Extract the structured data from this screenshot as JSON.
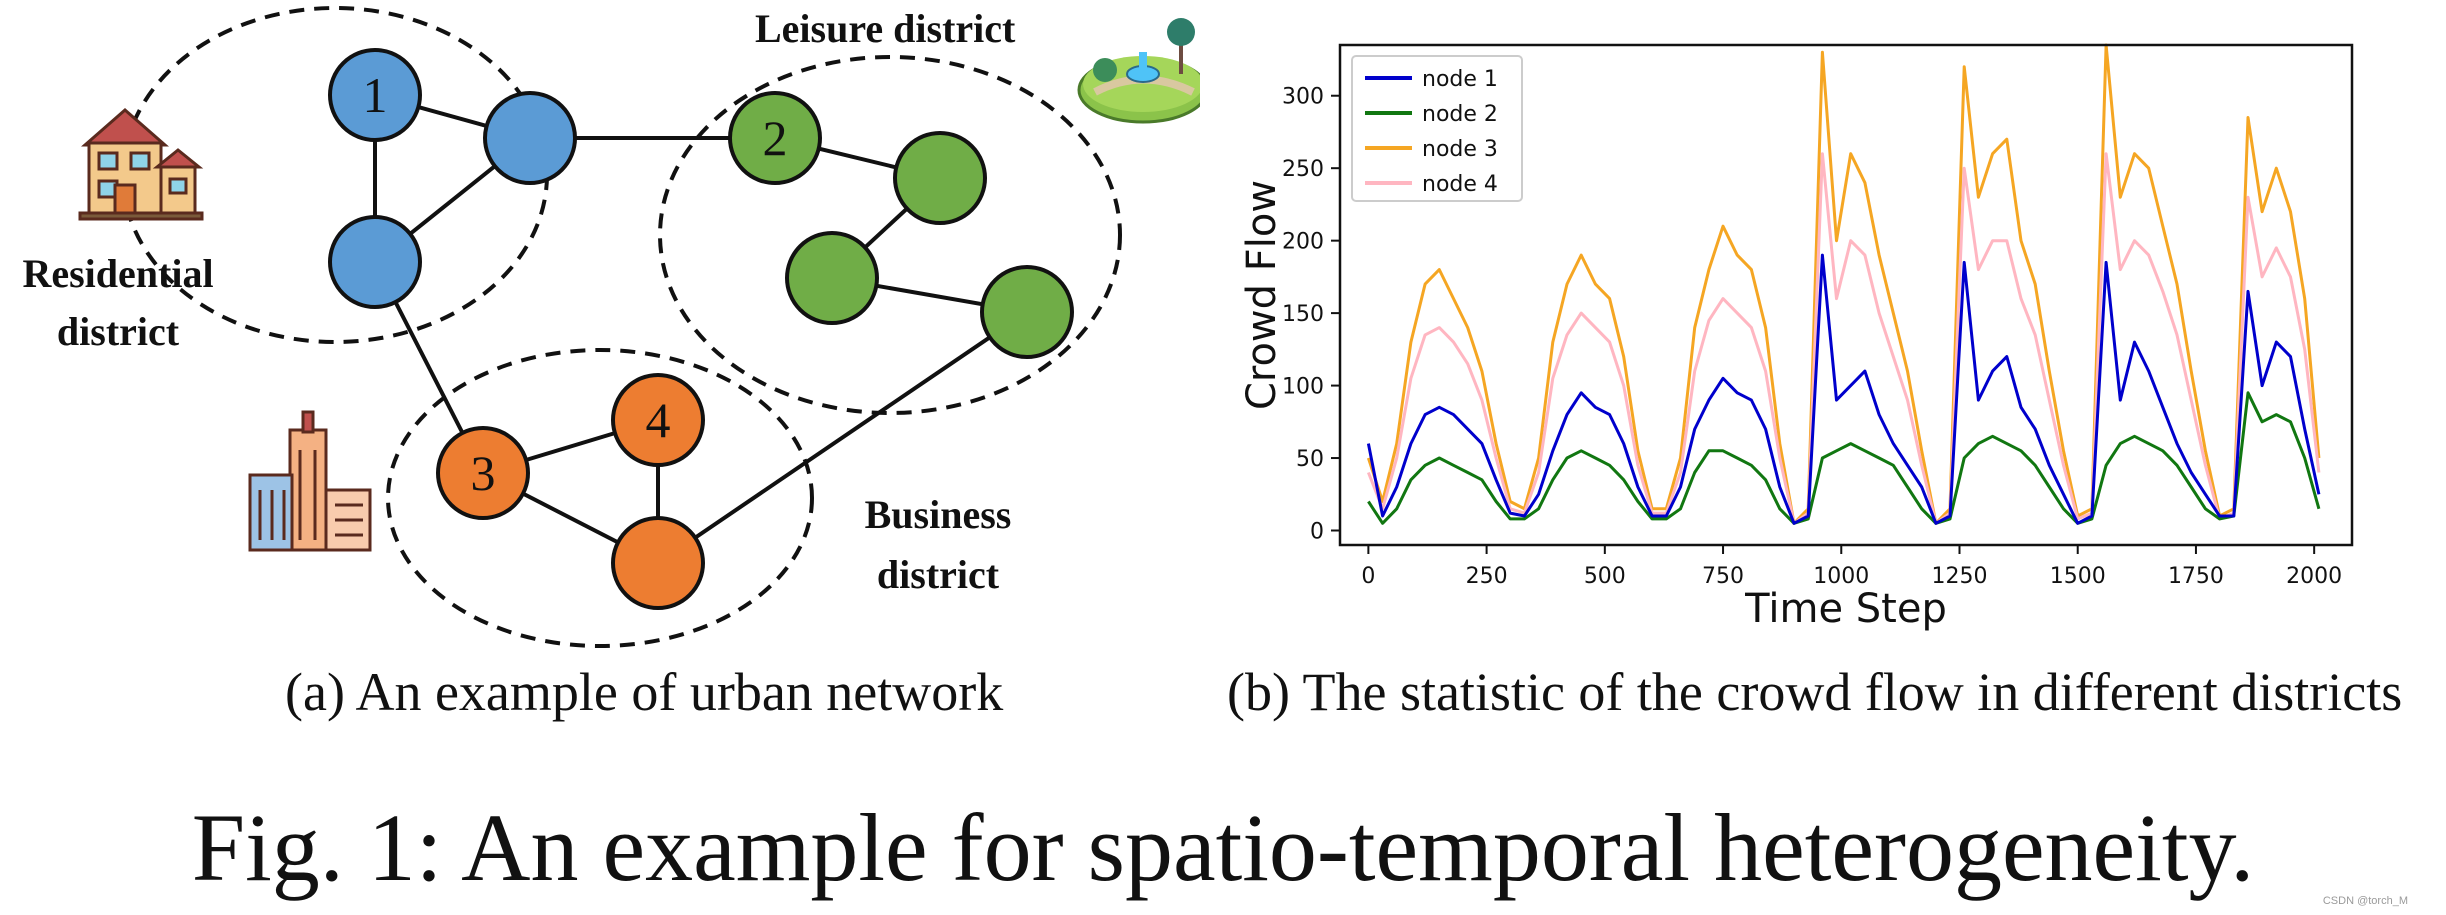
{
  "figure": {
    "caption": "Fig. 1: An example for spatio-temporal heterogeneity.",
    "watermark": "CSDN @torch_M"
  },
  "panel_a": {
    "caption": "(a) An example of urban network",
    "districts": {
      "residential": {
        "line1": "Residential",
        "line2": "district",
        "icon": "house-icon"
      },
      "leisure": {
        "line1": "Leisure district",
        "icon": "park-icon"
      },
      "business": {
        "line1": "Business",
        "line2": "district",
        "icon": "office-buildings-icon"
      }
    },
    "node_labels": [
      "1",
      "2",
      "3",
      "4"
    ],
    "colors": {
      "residential": "#5b9bd5",
      "leisure": "#70ad47",
      "business": "#ed7d31",
      "outline": "#111111"
    }
  },
  "panel_b": {
    "caption": "(b) The statistic of the crowd flow in different districts"
  },
  "chart_data": {
    "type": "line",
    "xlabel": "Time Step",
    "ylabel": "Crowd Flow",
    "xlim": [
      -60,
      2080
    ],
    "ylim": [
      -10,
      335
    ],
    "xticks": [
      0,
      250,
      500,
      750,
      1000,
      1250,
      1500,
      1750,
      2000
    ],
    "yticks": [
      0,
      50,
      100,
      150,
      200,
      250,
      300
    ],
    "grid": false,
    "legend_position": "top-left",
    "x": [
      0,
      30,
      60,
      90,
      120,
      150,
      180,
      210,
      240,
      270,
      300,
      330,
      360,
      390,
      420,
      450,
      480,
      510,
      540,
      570,
      600,
      630,
      660,
      690,
      720,
      750,
      780,
      810,
      840,
      870,
      900,
      930,
      960,
      990,
      1020,
      1050,
      1080,
      1110,
      1140,
      1170,
      1200,
      1230,
      1260,
      1290,
      1320,
      1350,
      1380,
      1410,
      1440,
      1470,
      1500,
      1530,
      1560,
      1590,
      1620,
      1650,
      1680,
      1710,
      1740,
      1770,
      1800,
      1830,
      1860,
      1890,
      1920,
      1950,
      1980,
      2010
    ],
    "series": [
      {
        "name": "node 1",
        "color": "#0000cc",
        "values": [
          60,
          10,
          30,
          60,
          80,
          85,
          80,
          70,
          60,
          35,
          12,
          10,
          25,
          55,
          80,
          95,
          85,
          80,
          60,
          30,
          10,
          10,
          30,
          70,
          90,
          105,
          95,
          90,
          70,
          30,
          5,
          10,
          190,
          90,
          100,
          110,
          80,
          60,
          45,
          30,
          5,
          10,
          185,
          90,
          110,
          120,
          85,
          70,
          45,
          25,
          5,
          10,
          185,
          90,
          130,
          110,
          85,
          60,
          40,
          25,
          10,
          10,
          165,
          100,
          130,
          120,
          70,
          25
        ]
      },
      {
        "name": "node 2",
        "color": "#117711",
        "values": [
          20,
          5,
          15,
          35,
          45,
          50,
          45,
          40,
          35,
          20,
          8,
          8,
          15,
          35,
          50,
          55,
          50,
          45,
          35,
          20,
          8,
          8,
          15,
          40,
          55,
          55,
          50,
          45,
          35,
          15,
          5,
          8,
          50,
          55,
          60,
          55,
          50,
          45,
          30,
          15,
          5,
          8,
          50,
          60,
          65,
          60,
          55,
          45,
          30,
          15,
          5,
          8,
          45,
          60,
          65,
          60,
          55,
          45,
          30,
          15,
          8,
          10,
          95,
          75,
          80,
          75,
          50,
          15
        ]
      },
      {
        "name": "node 3",
        "color": "#f5a623",
        "values": [
          50,
          20,
          60,
          130,
          170,
          180,
          160,
          140,
          110,
          60,
          20,
          15,
          50,
          130,
          170,
          190,
          170,
          160,
          120,
          55,
          15,
          15,
          50,
          140,
          180,
          210,
          190,
          180,
          140,
          60,
          5,
          15,
          330,
          200,
          260,
          240,
          190,
          150,
          110,
          55,
          5,
          15,
          320,
          230,
          260,
          270,
          200,
          170,
          110,
          55,
          10,
          15,
          335,
          230,
          260,
          250,
          210,
          170,
          110,
          55,
          10,
          15,
          285,
          220,
          250,
          220,
          160,
          50
        ]
      },
      {
        "name": "node 4",
        "color": "#ffb6c1",
        "values": [
          40,
          15,
          50,
          105,
          135,
          140,
          130,
          115,
          90,
          50,
          15,
          12,
          40,
          105,
          135,
          150,
          140,
          130,
          100,
          45,
          12,
          12,
          40,
          110,
          145,
          160,
          150,
          140,
          110,
          50,
          5,
          12,
          260,
          160,
          200,
          190,
          150,
          120,
          90,
          45,
          5,
          12,
          250,
          180,
          200,
          200,
          160,
          135,
          90,
          45,
          8,
          12,
          260,
          180,
          200,
          190,
          165,
          135,
          90,
          45,
          8,
          12,
          230,
          175,
          195,
          175,
          125,
          40
        ]
      }
    ]
  }
}
